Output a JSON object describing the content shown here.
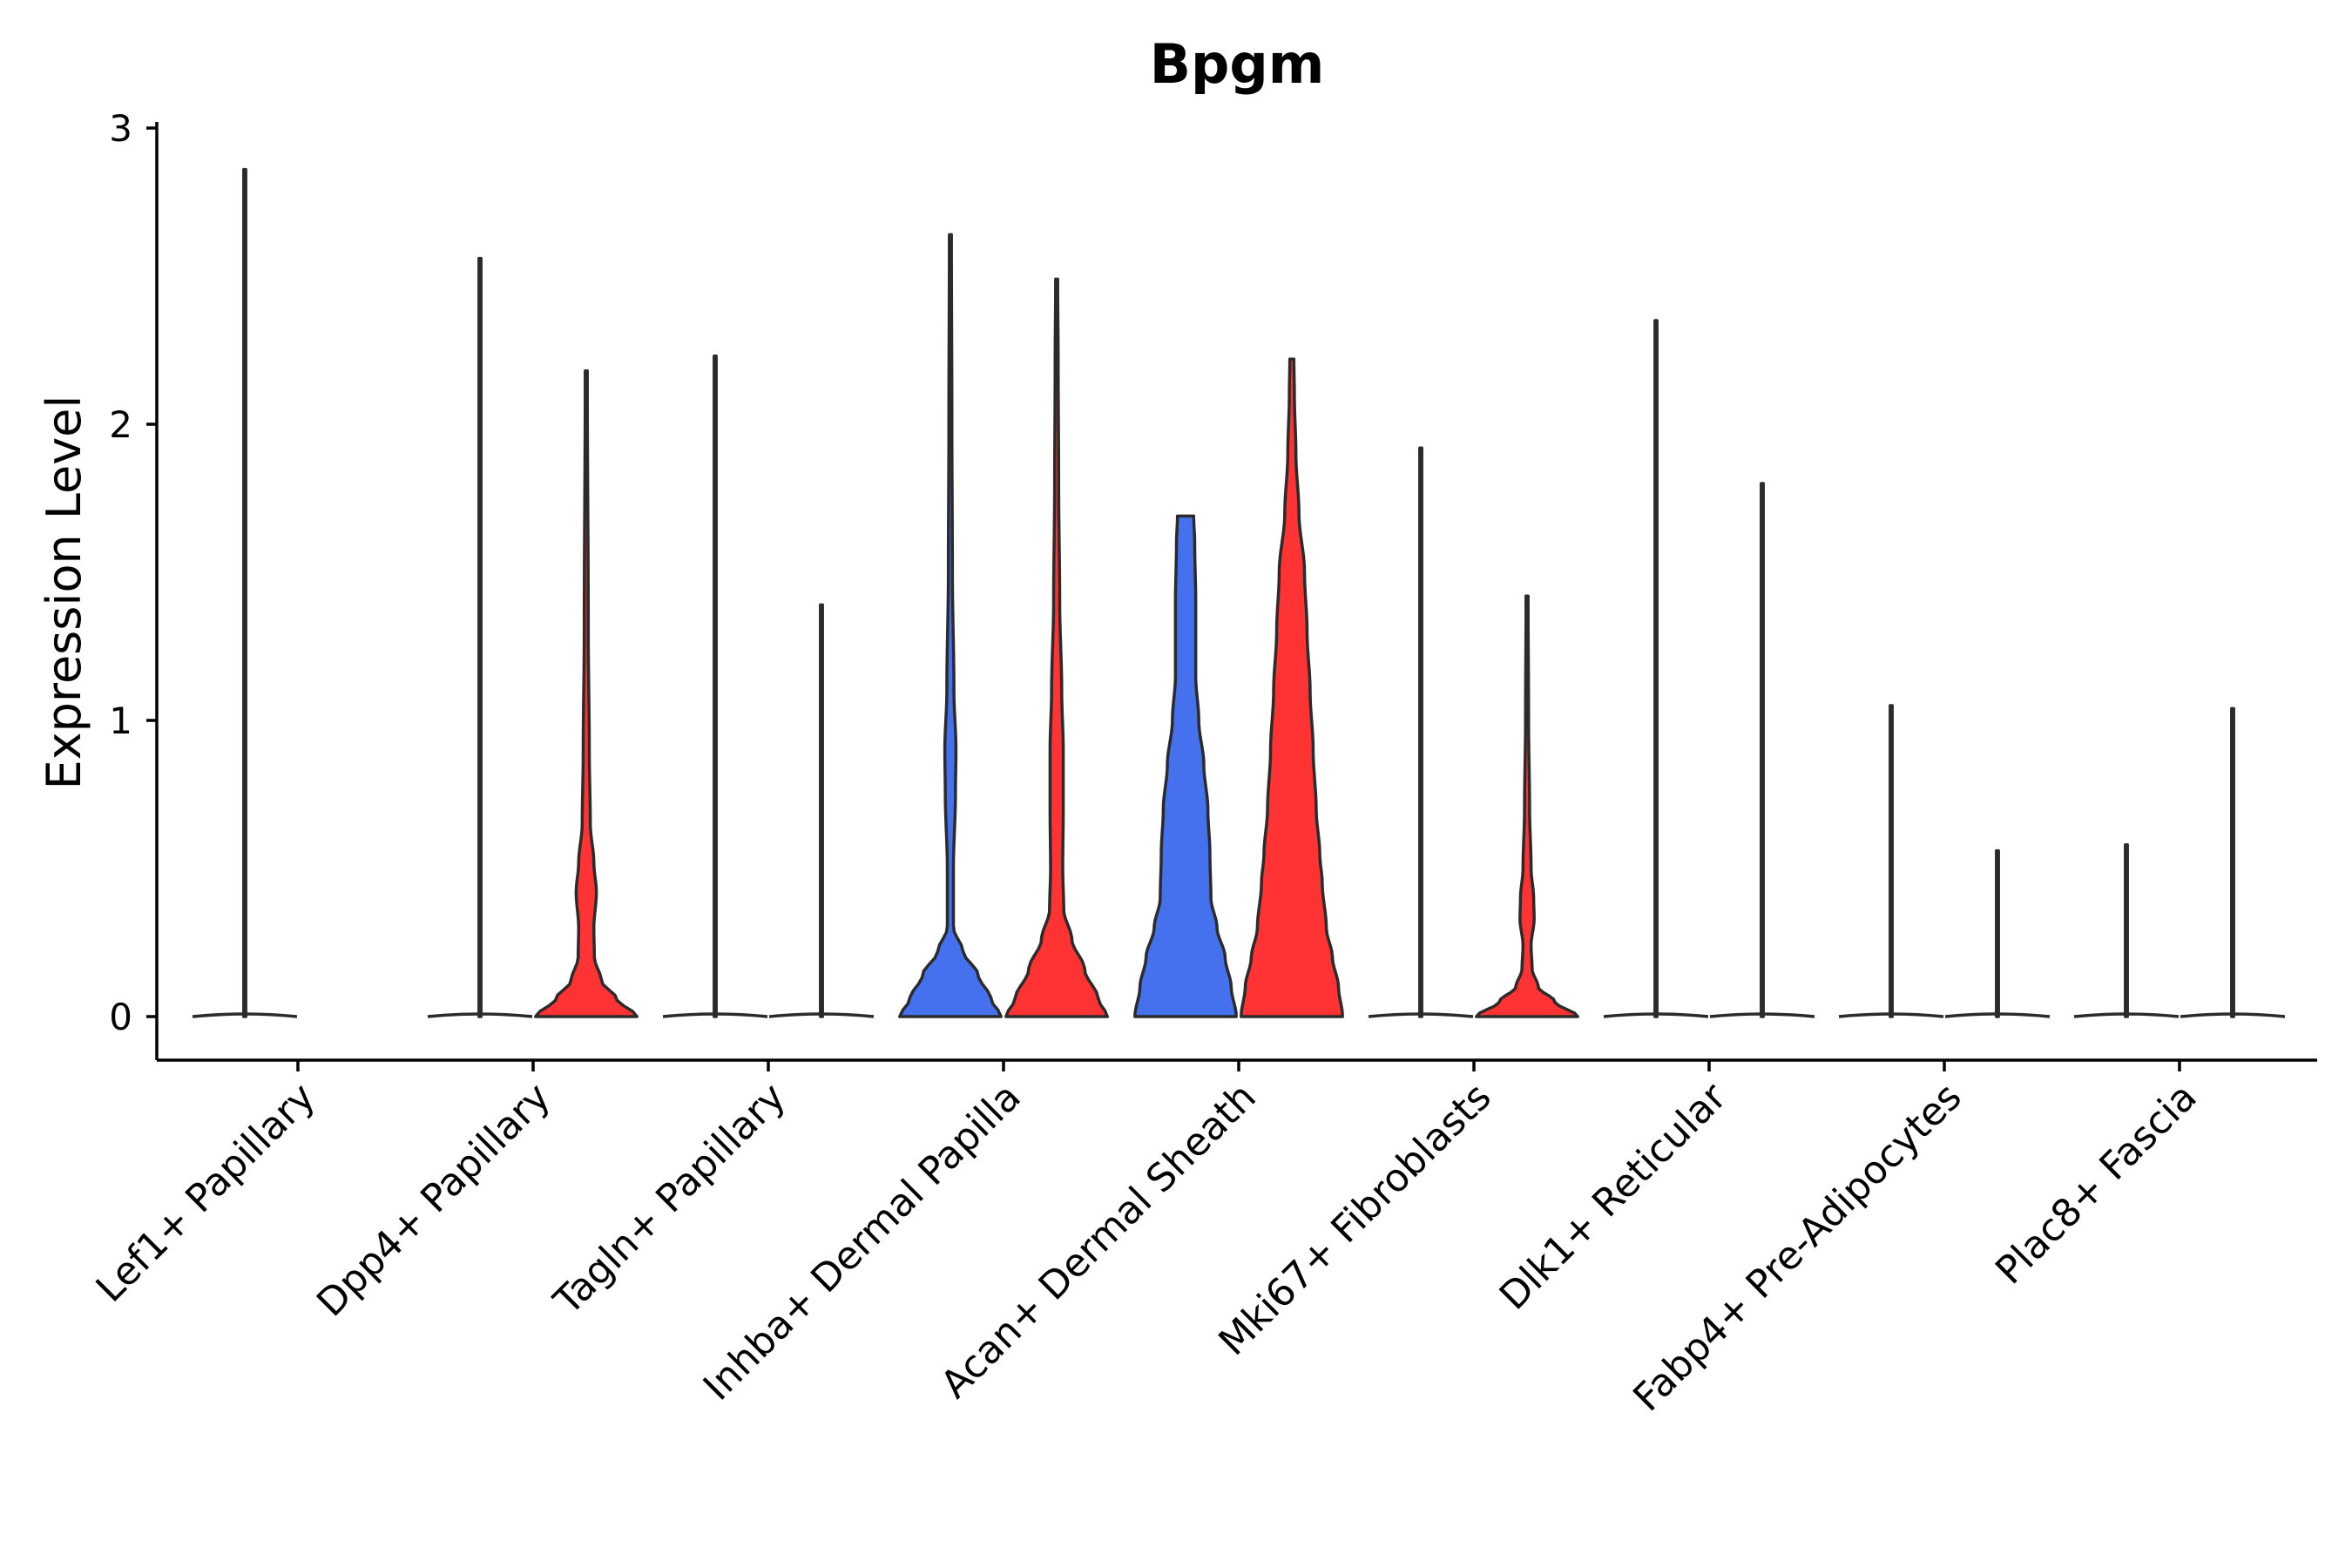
{
  "chart_data": {
    "type": "violin",
    "title": "Bpgm",
    "xlabel": "",
    "ylabel": "Expression Level",
    "ylim": [
      -0.15,
      3.05
    ],
    "yticks": [
      0,
      1,
      2,
      3
    ],
    "grid": false,
    "legend": "none",
    "categories": [
      "Lef1+ Papillary",
      "Dpp4+ Papillary",
      "Tagln+ Papillary",
      "Inhba+ Dermal Papilla",
      "Acan+ Dermal Sheath",
      "Mki67+ Fibroblasts",
      "Dlk1+ Reticular",
      "Fabp4+ Pre-Adipocytes",
      "Plac8+ Fascia"
    ],
    "groups": [
      {
        "name": "group-1",
        "color": "#4571EE"
      },
      {
        "name": "group-2",
        "color": "#FF3333"
      }
    ],
    "violins": [
      {
        "category": "Lef1+ Papillary",
        "group": "group-1",
        "max": 2.86,
        "width": 0.02,
        "profile": [
          [
            0,
            1
          ],
          [
            0.03,
            0.05
          ],
          [
            0.3,
            0.01
          ],
          [
            2.86,
            0.004
          ]
        ]
      },
      {
        "category": "Lef1+ Papillary",
        "group": "group-2",
        "max": 0,
        "width": 0,
        "profile": []
      },
      {
        "category": "Dpp4+ Papillary",
        "group": "group-1",
        "max": 2.56,
        "width": 0.02,
        "profile": [
          [
            0,
            1
          ],
          [
            0.03,
            0.05
          ],
          [
            0.3,
            0.01
          ],
          [
            2.56,
            0.004
          ]
        ]
      },
      {
        "category": "Dpp4+ Papillary",
        "group": "group-2",
        "max": 2.18,
        "width": 0.97,
        "profile": [
          [
            0,
            1
          ],
          [
            0.06,
            0.6
          ],
          [
            0.12,
            0.3
          ],
          [
            0.2,
            0.16
          ],
          [
            0.3,
            0.15
          ],
          [
            0.42,
            0.2
          ],
          [
            0.52,
            0.15
          ],
          [
            0.65,
            0.08
          ],
          [
            0.9,
            0.06
          ],
          [
            1.3,
            0.04
          ],
          [
            2.18,
            0.02
          ]
        ]
      },
      {
        "category": "Tagln+ Papillary",
        "group": "group-1",
        "max": 2.23,
        "width": 0.02,
        "profile": [
          [
            0,
            1
          ],
          [
            0.03,
            0.05
          ],
          [
            0.3,
            0.01
          ],
          [
            2.23,
            0.004
          ]
        ]
      },
      {
        "category": "Tagln+ Papillary",
        "group": "group-2",
        "max": 1.39,
        "width": 0.02,
        "profile": [
          [
            0,
            1
          ],
          [
            0.03,
            0.05
          ],
          [
            0.3,
            0.01
          ],
          [
            1.39,
            0.004
          ]
        ]
      },
      {
        "category": "Inhba+ Dermal Papilla",
        "group": "group-1",
        "max": 2.64,
        "width": 0.97,
        "profile": [
          [
            0,
            1
          ],
          [
            0.06,
            0.8
          ],
          [
            0.14,
            0.55
          ],
          [
            0.22,
            0.25
          ],
          [
            0.3,
            0.06
          ],
          [
            0.5,
            0.06
          ],
          [
            0.75,
            0.1
          ],
          [
            0.9,
            0.11
          ],
          [
            1.1,
            0.07
          ],
          [
            1.5,
            0.04
          ],
          [
            2.0,
            0.03
          ],
          [
            2.64,
            0.02
          ]
        ]
      },
      {
        "category": "Inhba+ Dermal Papilla",
        "group": "group-2",
        "max": 2.49,
        "width": 0.97,
        "profile": [
          [
            0,
            1
          ],
          [
            0.06,
            0.82
          ],
          [
            0.16,
            0.55
          ],
          [
            0.26,
            0.3
          ],
          [
            0.36,
            0.14
          ],
          [
            0.5,
            0.12
          ],
          [
            0.7,
            0.13
          ],
          [
            0.9,
            0.13
          ],
          [
            1.1,
            0.1
          ],
          [
            1.4,
            0.06
          ],
          [
            1.8,
            0.04
          ],
          [
            2.2,
            0.03
          ],
          [
            2.49,
            0.02
          ]
        ]
      },
      {
        "category": "Acan+ Dermal Sheath",
        "group": "group-1",
        "max": 1.69,
        "width": 0.97,
        "profile": [
          [
            0,
            1
          ],
          [
            0.1,
            0.9
          ],
          [
            0.2,
            0.78
          ],
          [
            0.3,
            0.62
          ],
          [
            0.4,
            0.5
          ],
          [
            0.55,
            0.48
          ],
          [
            0.7,
            0.44
          ],
          [
            0.85,
            0.36
          ],
          [
            1.0,
            0.26
          ],
          [
            1.15,
            0.2
          ],
          [
            1.4,
            0.2
          ],
          [
            1.6,
            0.18
          ],
          [
            1.69,
            0.16
          ]
        ]
      },
      {
        "category": "Acan+ Dermal Sheath",
        "group": "group-2",
        "max": 2.22,
        "width": 0.97,
        "profile": [
          [
            0,
            1
          ],
          [
            0.1,
            0.92
          ],
          [
            0.2,
            0.8
          ],
          [
            0.3,
            0.68
          ],
          [
            0.45,
            0.6
          ],
          [
            0.55,
            0.55
          ],
          [
            0.7,
            0.48
          ],
          [
            0.9,
            0.42
          ],
          [
            1.1,
            0.36
          ],
          [
            1.3,
            0.3
          ],
          [
            1.5,
            0.25
          ],
          [
            1.7,
            0.14
          ],
          [
            1.9,
            0.08
          ],
          [
            2.1,
            0.05
          ],
          [
            2.22,
            0.04
          ]
        ]
      },
      {
        "category": "Mki67+ Fibroblasts",
        "group": "group-1",
        "max": 1.92,
        "width": 0.02,
        "profile": [
          [
            0,
            1
          ],
          [
            0.03,
            0.05
          ],
          [
            0.3,
            0.01
          ],
          [
            1.92,
            0.004
          ]
        ]
      },
      {
        "category": "Mki67+ Fibroblasts",
        "group": "group-2",
        "max": 1.42,
        "width": 0.97,
        "profile": [
          [
            0,
            1
          ],
          [
            0.05,
            0.55
          ],
          [
            0.1,
            0.22
          ],
          [
            0.16,
            0.1
          ],
          [
            0.24,
            0.08
          ],
          [
            0.33,
            0.14
          ],
          [
            0.4,
            0.13
          ],
          [
            0.5,
            0.08
          ],
          [
            0.7,
            0.05
          ],
          [
            1.0,
            0.03
          ],
          [
            1.42,
            0.02
          ]
        ]
      },
      {
        "category": "Dlk1+ Reticular",
        "group": "group-1",
        "max": 2.35,
        "width": 0.02,
        "profile": [
          [
            0,
            1
          ],
          [
            0.03,
            0.05
          ],
          [
            0.3,
            0.01
          ],
          [
            2.35,
            0.004
          ]
        ]
      },
      {
        "category": "Dlk1+ Reticular",
        "group": "group-2",
        "max": 1.8,
        "width": 0.02,
        "profile": [
          [
            0,
            1
          ],
          [
            0.03,
            0.05
          ],
          [
            0.3,
            0.01
          ],
          [
            1.8,
            0.004
          ]
        ]
      },
      {
        "category": "Fabp4+ Pre-Adipocytes",
        "group": "group-1",
        "max": 1.05,
        "width": 0.02,
        "profile": [
          [
            0,
            1
          ],
          [
            0.03,
            0.05
          ],
          [
            0.3,
            0.01
          ],
          [
            1.05,
            0.004
          ]
        ]
      },
      {
        "category": "Fabp4+ Pre-Adipocytes",
        "group": "group-2",
        "max": 0.56,
        "width": 0.02,
        "profile": [
          [
            0,
            1
          ],
          [
            0.03,
            0.05
          ],
          [
            0.2,
            0.012
          ],
          [
            0.56,
            0.008
          ]
        ]
      },
      {
        "category": "Plac8+ Fascia",
        "group": "group-1",
        "max": 0.58,
        "width": 0.02,
        "profile": [
          [
            0,
            1
          ],
          [
            0.03,
            0.05
          ],
          [
            0.2,
            0.01
          ],
          [
            0.58,
            0.004
          ]
        ]
      },
      {
        "category": "Plac8+ Fascia",
        "group": "group-2",
        "max": 1.04,
        "width": 0.02,
        "profile": [
          [
            0,
            1
          ],
          [
            0.03,
            0.05
          ],
          [
            0.3,
            0.01
          ],
          [
            1.04,
            0.004
          ]
        ]
      }
    ]
  }
}
